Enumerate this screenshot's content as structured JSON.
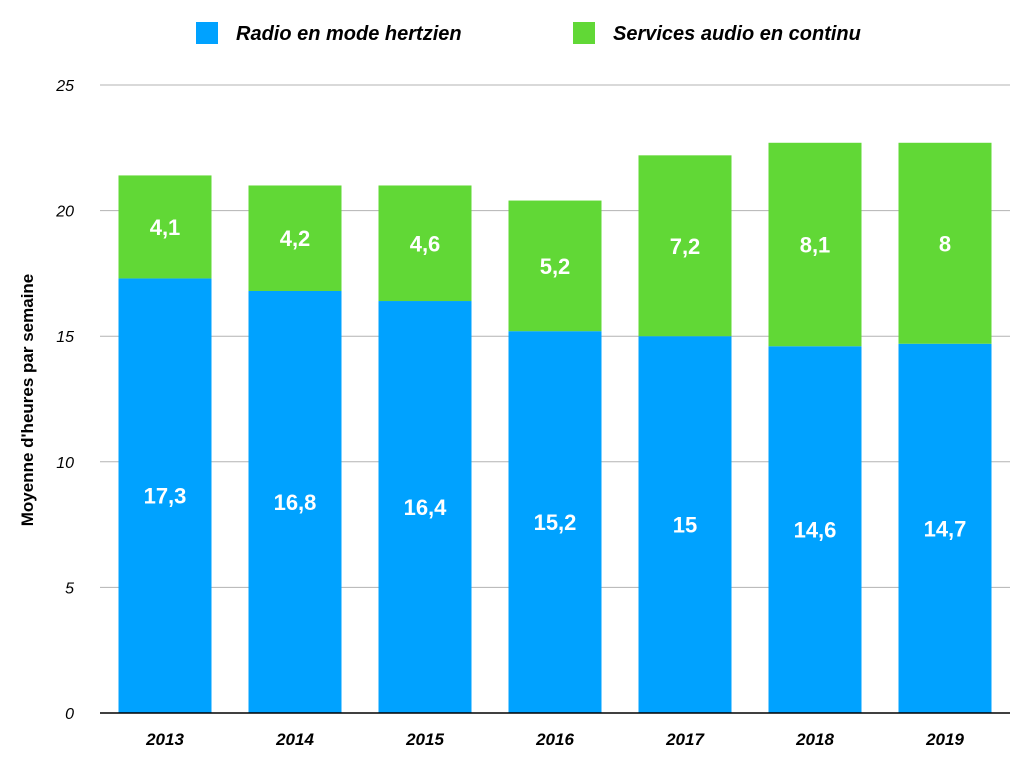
{
  "chart_data": {
    "type": "bar",
    "stacked": true,
    "categories": [
      "2013",
      "2014",
      "2015",
      "2016",
      "2017",
      "2018",
      "2019"
    ],
    "series": [
      {
        "name": "Radio en mode hertzien",
        "color": "#00a2ff",
        "values": [
          17.3,
          16.8,
          16.4,
          15.2,
          15,
          14.6,
          14.7
        ],
        "labels": [
          "17,3",
          "16,8",
          "16,4",
          "15,2",
          "15",
          "14,6",
          "14,7"
        ]
      },
      {
        "name": "Services audio en continu",
        "color": "#61d836",
        "values": [
          4.1,
          4.2,
          4.6,
          5.2,
          7.2,
          8.1,
          8
        ],
        "labels": [
          "4,1",
          "4,2",
          "4,6",
          "5,2",
          "7,2",
          "8,1",
          "8"
        ]
      }
    ],
    "title": "",
    "xlabel": "",
    "ylabel": "Moyenne d'heures par semaine",
    "ylim": [
      0,
      25
    ],
    "yticks": [
      "0",
      "5",
      "10",
      "15",
      "20",
      "25"
    ],
    "grid": true,
    "legend_position": "top"
  }
}
